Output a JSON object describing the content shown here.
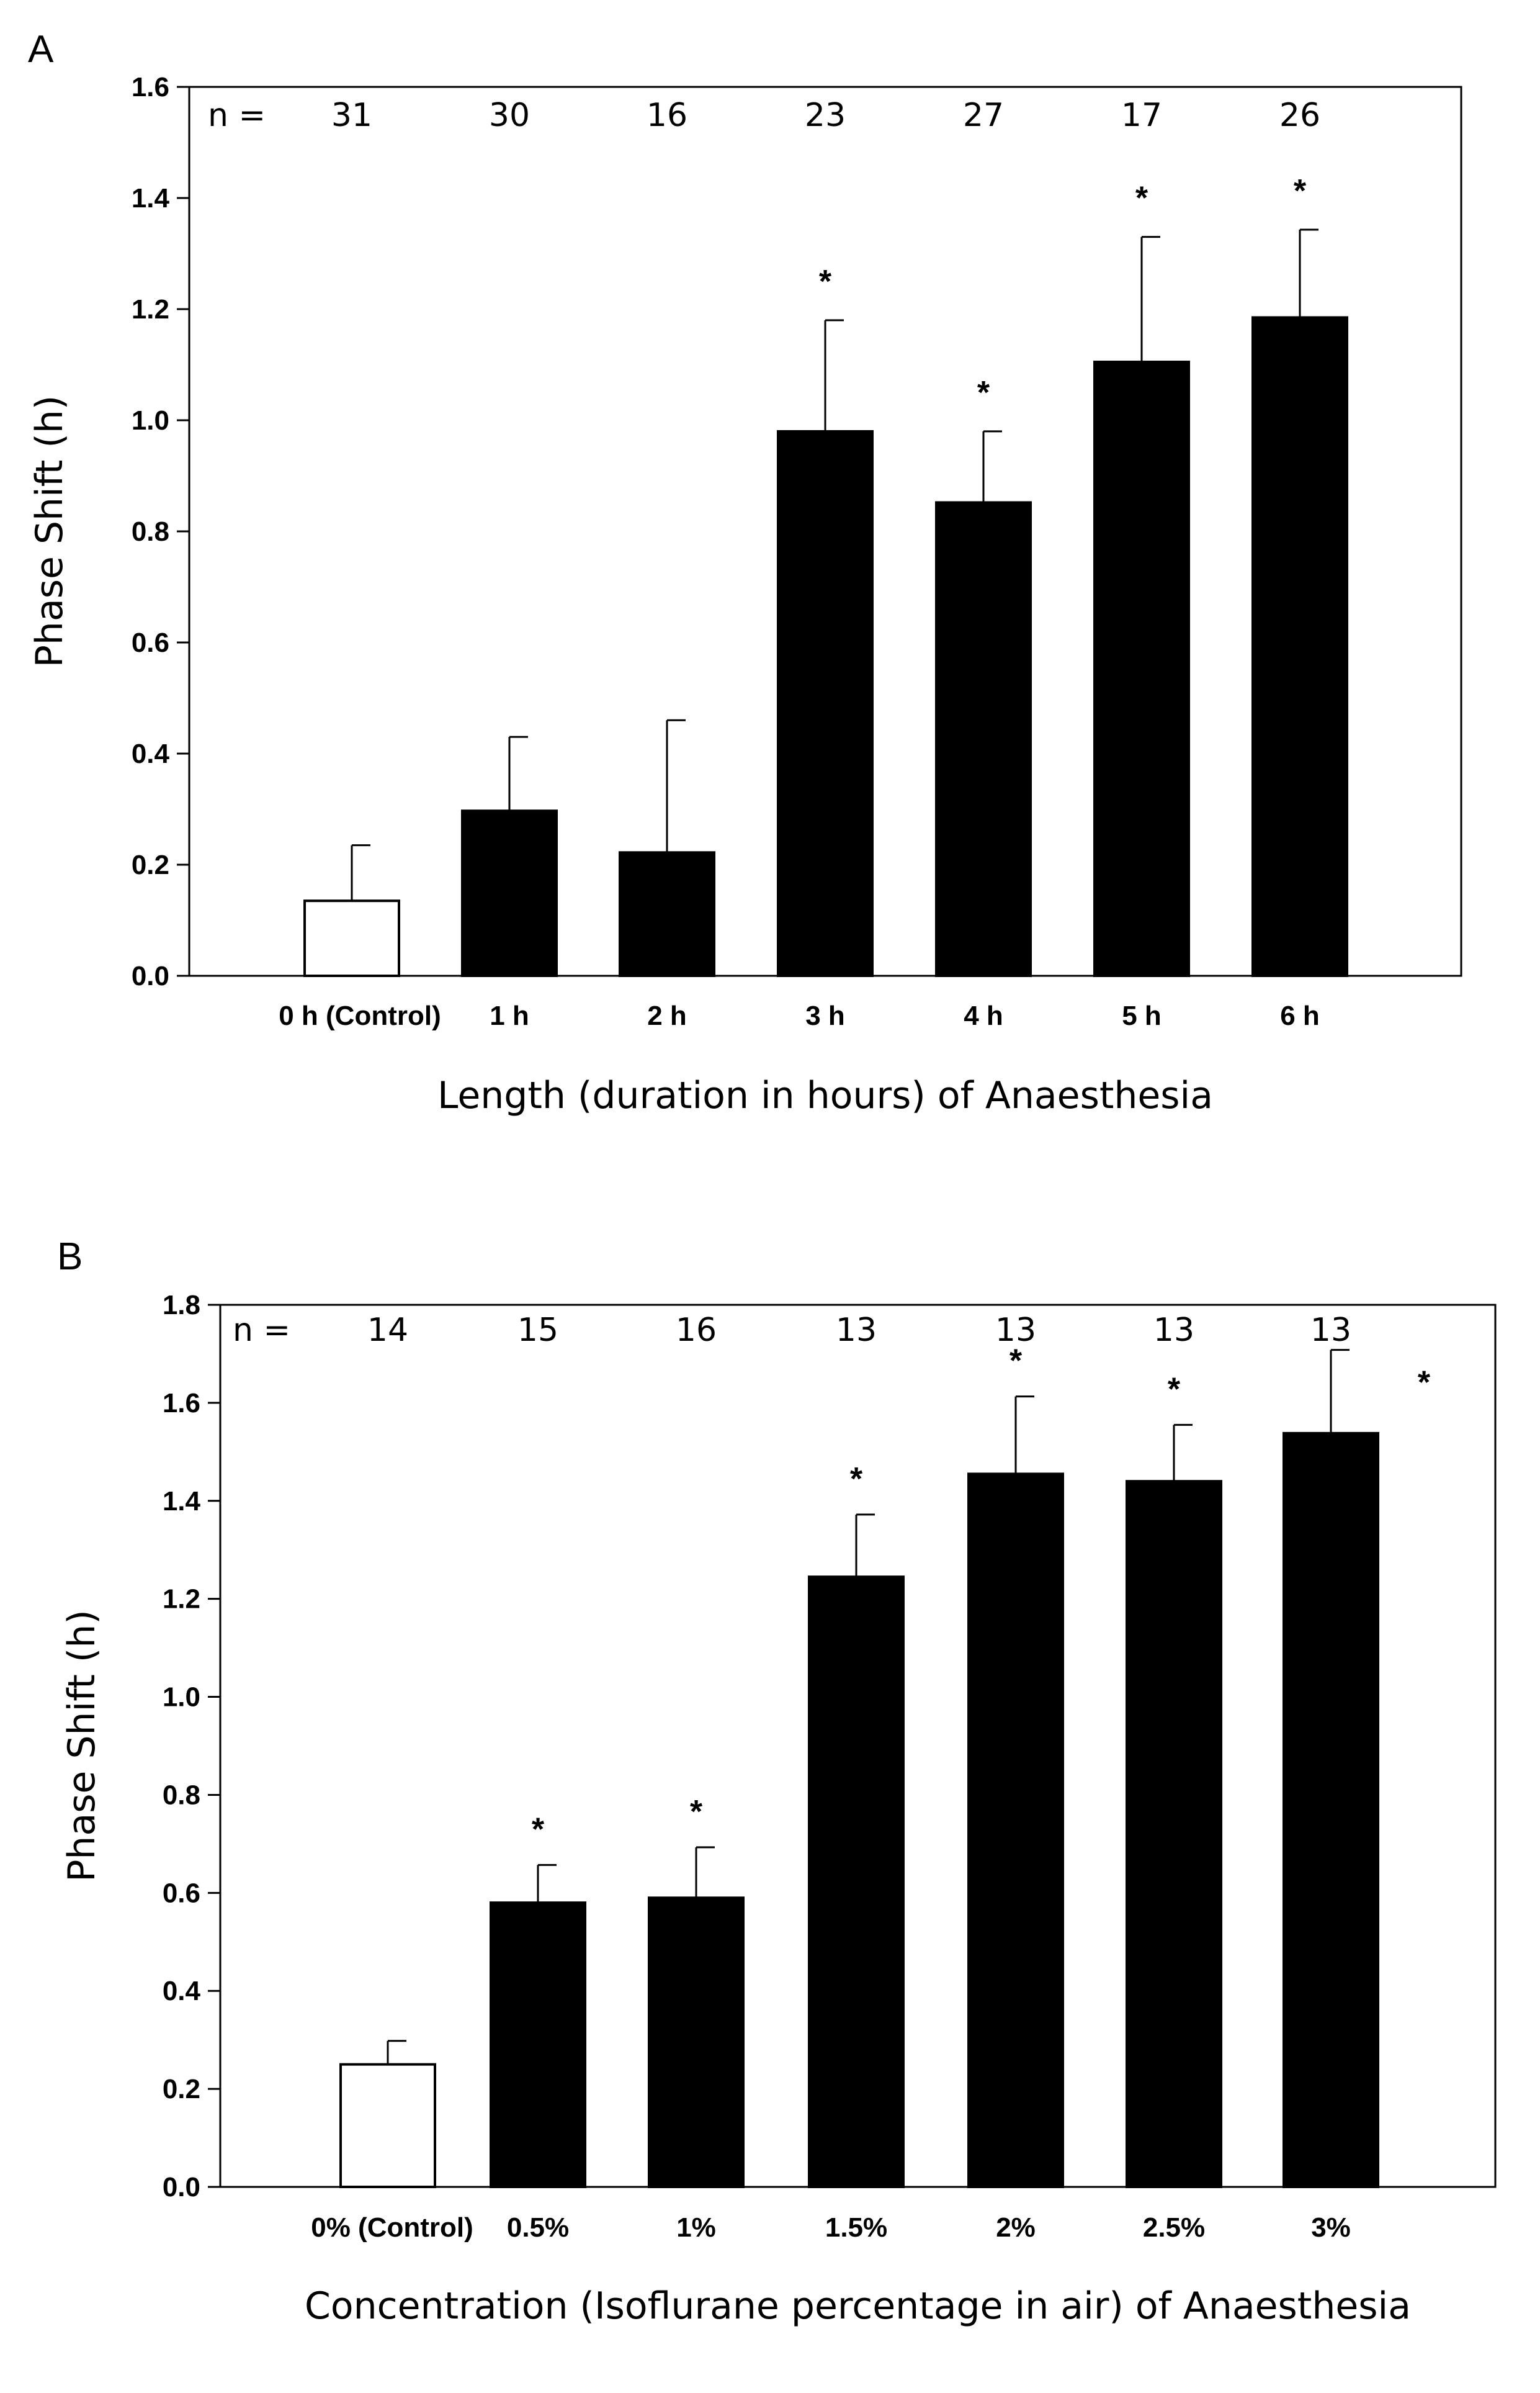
{
  "chart_data": [
    {
      "type": "bar",
      "panel_label": "A",
      "ylabel": "Phase Shift (h)",
      "xlabel": "Length (duration in hours) of Anaesthesia",
      "ylim": [
        0,
        1.6
      ],
      "yticks": [
        "0.0",
        "0.2",
        "0.4",
        "0.6",
        "0.8",
        "1.0",
        "1.2",
        "1.4",
        "1.6"
      ],
      "n_label": "n =",
      "categories": [
        "0 h (Control)",
        "1 h",
        "2 h",
        "3 h",
        "4 h",
        "5 h",
        "6 h"
      ],
      "values": [
        0.135,
        0.297,
        0.222,
        0.98,
        0.852,
        1.105,
        1.185
      ],
      "errors": [
        0.1,
        0.133,
        0.238,
        0.2,
        0.128,
        0.225,
        0.158
      ],
      "n": [
        "31",
        "30",
        "16",
        "23",
        "27",
        "17",
        "26"
      ],
      "significant": [
        false,
        false,
        false,
        true,
        true,
        true,
        true
      ],
      "colors": [
        "#ffffff",
        "#000000",
        "#000000",
        "#000000",
        "#000000",
        "#000000",
        "#000000"
      ],
      "star_symbol": "*"
    },
    {
      "type": "bar",
      "panel_label": "B",
      "ylabel": "Phase Shift (h)",
      "xlabel": "Concentration (Isoflurane percentage in air) of Anaesthesia",
      "ylim": [
        0,
        1.8
      ],
      "yticks": [
        "0.0",
        "0.2",
        "0.4",
        "0.6",
        "0.8",
        "1.0",
        "1.2",
        "1.4",
        "1.6",
        "1.8"
      ],
      "n_label": "n =",
      "categories": [
        "0% (Control)",
        "0.5%",
        "1%",
        "1.5%",
        "2%",
        "2.5%",
        "3%"
      ],
      "values": [
        0.25,
        0.58,
        0.59,
        1.245,
        1.455,
        1.44,
        1.538
      ],
      "errors": [
        0.048,
        0.077,
        0.103,
        0.127,
        0.158,
        0.115,
        0.17
      ],
      "n": [
        "14",
        "15",
        "16",
        "13",
        "13",
        "13",
        "13"
      ],
      "significant": [
        false,
        true,
        true,
        true,
        true,
        true,
        true
      ],
      "colors": [
        "#ffffff",
        "#000000",
        "#000000",
        "#000000",
        "#000000",
        "#000000",
        "#000000"
      ],
      "star_symbol": "*"
    }
  ]
}
